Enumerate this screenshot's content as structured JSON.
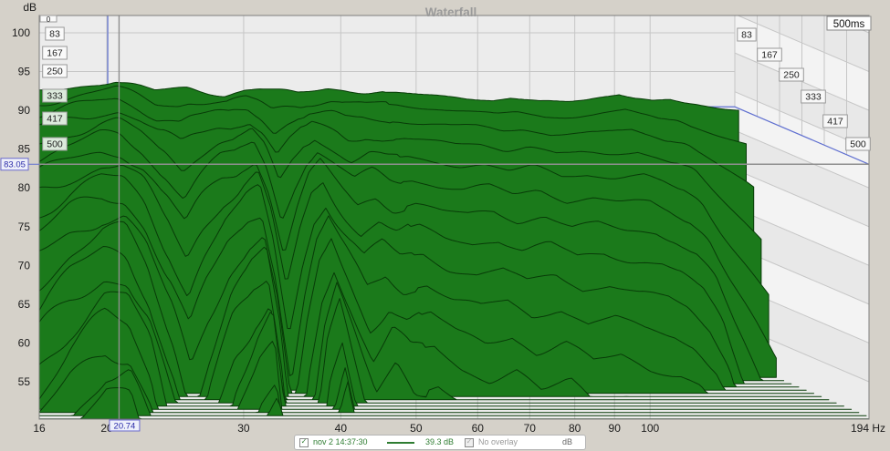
{
  "window": {
    "title": "Waterfall"
  },
  "axes": {
    "y_title": "dB",
    "y_ticks": [
      100,
      95,
      90,
      85,
      80,
      75,
      70,
      65,
      60,
      55
    ],
    "x_ticks": [
      {
        "f": 16,
        "label": "16"
      },
      {
        "f": 20,
        "label": "20"
      },
      {
        "f": 30,
        "label": "30"
      },
      {
        "f": 40,
        "label": "40"
      },
      {
        "f": 50,
        "label": "50"
      },
      {
        "f": 60,
        "label": "60"
      },
      {
        "f": 70,
        "label": "70"
      },
      {
        "f": 80,
        "label": "80"
      },
      {
        "f": 90,
        "label": "90"
      },
      {
        "f": 100,
        "label": "100"
      },
      {
        "f": 194,
        "label": "194 Hz"
      }
    ],
    "time_axis_label": "500ms",
    "time_zero_label": "0"
  },
  "time_slice_labels": [
    "83",
    "167",
    "250",
    "333",
    "417",
    "500"
  ],
  "cursor": {
    "freq_label": "20.74",
    "level_label": "83.05",
    "freq_hz": 20.74,
    "level_db": 83.05
  },
  "legend": {
    "measurement_name": "nov 2 14:37:30",
    "measurement_checked": true,
    "value_label": "39.3 dB",
    "overlay_label": "No overlay",
    "overlay_checked": true,
    "unit_label": "dB"
  },
  "colors": {
    "page_bg": "#d5d1c9",
    "plot_bg": "#ececec",
    "zone_band_light": "#f3f3f3",
    "zone_band_dark": "#e8e8e8",
    "grid": "#c6c6c6",
    "surface_fill": "#1b7a1b",
    "surface_line": "#083b08",
    "cursor_line": "#8f8f8f",
    "cursor_accent": "#5f6fd0",
    "title_text": "#9a9a9a",
    "axis_text": "#1a1a1a",
    "legend_green": "#2f7d32"
  },
  "chart_data": {
    "type": "waterfall",
    "title": "Waterfall",
    "ylabel": "dB",
    "xlabel_unit": "Hz",
    "freq_range_hz": [
      16,
      194
    ],
    "db_axis_range": [
      55,
      100
    ],
    "time_range_ms": [
      0,
      500
    ],
    "num_slices": 19,
    "labeled_slice_times_ms": [
      83,
      167,
      250,
      333,
      417,
      500
    ],
    "time_window_label": "500ms",
    "floor_db": 50.2,
    "grid": true,
    "legend_position": "bottom",
    "cursor_readout": {
      "freq_hz": 20.74,
      "level_db": 83.05,
      "legend_value_db": 39.3
    },
    "base_curve_f_db": [
      [
        16,
        84.8
      ],
      [
        17,
        85.1
      ],
      [
        18.5,
        85.6
      ],
      [
        20,
        86.0
      ],
      [
        21.3,
        86.3
      ],
      [
        22.5,
        85.8
      ],
      [
        24.5,
        84.9
      ],
      [
        26,
        85.2
      ],
      [
        27.5,
        85.5
      ],
      [
        29.2,
        85.2
      ],
      [
        31.4,
        84.8
      ],
      [
        33.7,
        85.4
      ],
      [
        35.4,
        85.5
      ],
      [
        38,
        85.1
      ],
      [
        40.6,
        84.7
      ],
      [
        43.3,
        85.2
      ],
      [
        45.1,
        85.5
      ],
      [
        47.4,
        85.3
      ],
      [
        51.5,
        84.9
      ],
      [
        56,
        84.7
      ],
      [
        63.4,
        84.5
      ],
      [
        71.7,
        84.4
      ],
      [
        81.2,
        84.0
      ],
      [
        86.6,
        84.3
      ],
      [
        95.7,
        83.8
      ],
      [
        106,
        83.8
      ],
      [
        113,
        84.0
      ],
      [
        121,
        84.4
      ],
      [
        127,
        84.6
      ],
      [
        134,
        84.0
      ],
      [
        143,
        83.6
      ],
      [
        152,
        83.8
      ],
      [
        160,
        83.4
      ],
      [
        170,
        83.2
      ],
      [
        182,
        83.0
      ],
      [
        194,
        82.8
      ]
    ],
    "decay_db_per_slice_f_r": [
      [
        16,
        0.8
      ],
      [
        18,
        0.66
      ],
      [
        20,
        0.58
      ],
      [
        21.5,
        0.6
      ],
      [
        23,
        0.74
      ],
      [
        25,
        1.1
      ],
      [
        26.5,
        1.45
      ],
      [
        28,
        1.15
      ],
      [
        30,
        0.85
      ],
      [
        32,
        0.7
      ],
      [
        33.5,
        0.64
      ],
      [
        35,
        1.05
      ],
      [
        36.8,
        1.8
      ],
      [
        38.5,
        1.2
      ],
      [
        40,
        0.82
      ],
      [
        41.5,
        0.68
      ],
      [
        43,
        0.85
      ],
      [
        45,
        1.05
      ],
      [
        47,
        1.2
      ],
      [
        50,
        1.05
      ],
      [
        53,
        1.15
      ],
      [
        57,
        1.1
      ],
      [
        62,
        1.2
      ],
      [
        68,
        1.25
      ],
      [
        74,
        1.2
      ],
      [
        80,
        1.3
      ],
      [
        88,
        1.25
      ],
      [
        96,
        1.35
      ],
      [
        105,
        1.3
      ],
      [
        115,
        1.4
      ],
      [
        125,
        1.45
      ],
      [
        135,
        1.5
      ],
      [
        145,
        1.65
      ],
      [
        155,
        1.95
      ],
      [
        165,
        2.5
      ],
      [
        178,
        3.1
      ],
      [
        194,
        3.8
      ]
    ],
    "decay_accel_per_slice": 0.12
  }
}
